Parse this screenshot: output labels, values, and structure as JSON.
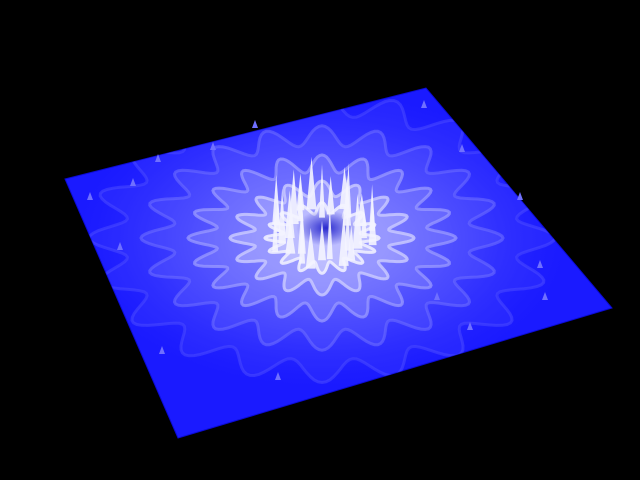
{
  "window": {
    "title": ""
  },
  "scene": {
    "description_label": "",
    "background_color": "#000000",
    "plane_color": "#1a1aff",
    "plane_edge_color": "#0b0bd6",
    "highlight_color": "#e8e8ff",
    "mid_color": "#8a8aff",
    "lobe_count_inner": 16,
    "lobe_count_middle": 20,
    "lobe_count_outer": 20,
    "ring_count": 4
  }
}
